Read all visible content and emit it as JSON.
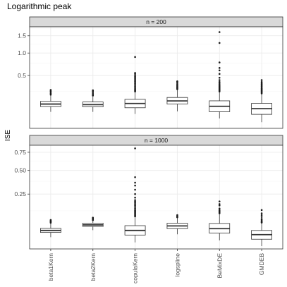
{
  "chart_data": {
    "type": "boxplot",
    "title": "Logarithmic peak",
    "ylabel": "ISE",
    "xlabel": "",
    "categories": [
      "beta1Kern",
      "beta2Kern",
      "copulaKern",
      "logspline",
      "BeMixDE",
      "GMDEB"
    ],
    "y_scale": "sqrt",
    "grid": true,
    "panels": [
      {
        "strip": "n = 200",
        "y_ticks": [
          {
            "value": 0.5,
            "label": "0.5"
          },
          {
            "value": 1.0,
            "label": "1.0"
          },
          {
            "value": 1.5,
            "label": "1.5"
          }
        ],
        "ylim": [
          0.0004,
          1.8
        ],
        "boxes": [
          {
            "category": "beta1Kern",
            "whisker_low": 0.055,
            "q1": 0.092,
            "median": 0.113,
            "q3": 0.138,
            "whisker_high": 0.2,
            "outliers": [
              0.21,
              0.225,
              0.24,
              0.255,
              0.27
            ]
          },
          {
            "category": "beta2Kern",
            "whisker_low": 0.055,
            "q1": 0.09,
            "median": 0.108,
            "q3": 0.132,
            "whisker_high": 0.19,
            "outliers": [
              0.2,
              0.215,
              0.23,
              0.25,
              0.265
            ]
          },
          {
            "category": "copulaKern",
            "whisker_low": 0.043,
            "q1": 0.083,
            "median": 0.118,
            "q3": 0.158,
            "whisker_high": 0.24,
            "outliers": [
              0.25,
              0.26,
              0.27,
              0.285,
              0.3,
              0.32,
              0.34,
              0.36,
              0.38,
              0.4,
              0.42,
              0.44,
              0.46,
              0.48,
              0.5,
              0.53,
              0.55,
              0.9
            ]
          },
          {
            "category": "logspline",
            "whisker_low": 0.058,
            "q1": 0.113,
            "median": 0.142,
            "q3": 0.178,
            "whisker_high": 0.27,
            "outliers": [
              0.28,
              0.29,
              0.3,
              0.31,
              0.32,
              0.335,
              0.35,
              0.37,
              0.39,
              0.4
            ]
          },
          {
            "category": "BeMixDE",
            "whisker_low": 0.022,
            "q1": 0.056,
            "median": 0.094,
            "q3": 0.143,
            "whisker_high": 0.24,
            "outliers": [
              0.25,
              0.26,
              0.27,
              0.28,
              0.29,
              0.3,
              0.31,
              0.32,
              0.33,
              0.35,
              0.37,
              0.39,
              0.42,
              0.46,
              0.53,
              0.6,
              0.65,
              0.77,
              1.28,
              1.62
            ]
          },
          {
            "category": "GMDEB",
            "whisker_low": 0.01,
            "q1": 0.041,
            "median": 0.076,
            "q3": 0.119,
            "whisker_high": 0.22,
            "outliers": [
              0.225,
              0.235,
              0.245,
              0.255,
              0.265,
              0.275,
              0.285,
              0.295,
              0.31,
              0.325,
              0.34,
              0.355,
              0.37,
              0.39,
              0.42
            ]
          }
        ]
      },
      {
        "strip": "n = 1000",
        "y_ticks": [
          {
            "value": 0.25,
            "label": "0.25"
          },
          {
            "value": 0.5,
            "label": "0.50"
          },
          {
            "value": 0.75,
            "label": "0.75"
          }
        ],
        "ylim": [
          0.0004,
          0.86
        ],
        "boxes": [
          {
            "category": "beta1Kern",
            "whisker_low": 0.015,
            "q1": 0.027,
            "median": 0.033,
            "q3": 0.04,
            "whisker_high": 0.06,
            "outliers": [
              0.062,
              0.065,
              0.068,
              0.071,
              0.075
            ]
          },
          {
            "category": "beta2Kern",
            "whisker_low": 0.034,
            "q1": 0.047,
            "median": 0.053,
            "q3": 0.06,
            "whisker_high": 0.072,
            "outliers": [
              0.074,
              0.077,
              0.08,
              0.083,
              0.086
            ]
          },
          {
            "category": "copulaKern",
            "whisker_low": 0.006,
            "q1": 0.02,
            "median": 0.033,
            "q3": 0.05,
            "whisker_high": 0.09,
            "outliers": [
              0.093,
              0.096,
              0.1,
              0.105,
              0.11,
              0.115,
              0.12,
              0.125,
              0.13,
              0.14,
              0.15,
              0.16,
              0.17,
              0.18,
              0.19,
              0.2,
              0.22,
              0.25,
              0.29,
              0.33,
              0.36,
              0.42,
              0.81
            ]
          },
          {
            "category": "logspline",
            "whisker_low": 0.022,
            "q1": 0.039,
            "median": 0.049,
            "q3": 0.06,
            "whisker_high": 0.085,
            "outliers": [
              0.088,
              0.091,
              0.095,
              0.1
            ]
          },
          {
            "category": "BeMixDE",
            "whisker_low": 0.009,
            "q1": 0.025,
            "median": 0.039,
            "q3": 0.059,
            "whisker_high": 0.105,
            "outliers": [
              0.11,
              0.115,
              0.12,
              0.125,
              0.13,
              0.14,
              0.16,
              0.17,
              0.19
            ]
          },
          {
            "category": "GMDEB",
            "whisker_low": 0.002,
            "q1": 0.011,
            "median": 0.021,
            "q3": 0.033,
            "whisker_high": 0.06,
            "outliers": [
              0.063,
              0.066,
              0.07,
              0.075,
              0.08,
              0.09,
              0.1,
              0.11,
              0.13
            ]
          }
        ]
      }
    ],
    "colors": {
      "panel_bg": "#ffffff",
      "grid_major": "#ebebeb",
      "grid_minor": "#f5f5f5",
      "panel_border": "#333333",
      "strip_bg": "#d9d9d9",
      "box_fill": "#ffffff",
      "box_line": "#333333",
      "outlier": "#1a1a1a"
    }
  }
}
